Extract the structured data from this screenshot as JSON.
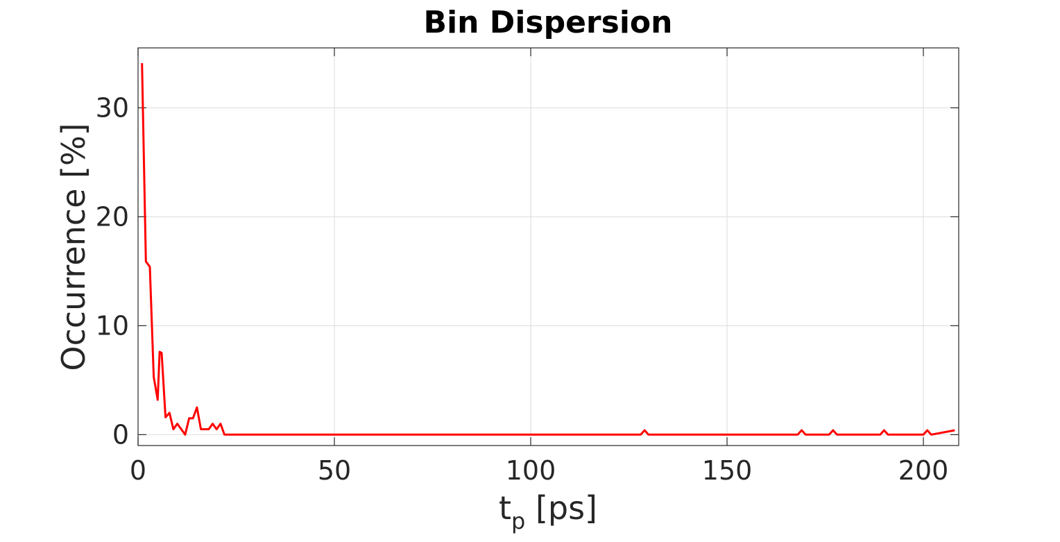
{
  "chart_data": {
    "type": "line",
    "title": "Bin Dispersion",
    "xlabel": {
      "main": "t",
      "sub": "p",
      "unit": " [ps]"
    },
    "ylabel": "Occurrence [%]",
    "xlim": [
      0,
      209
    ],
    "ylim": [
      -1,
      35.5
    ],
    "xticks": [
      0,
      50,
      100,
      150,
      200
    ],
    "xtick_labels": [
      "0",
      "50",
      "100",
      "150",
      "200"
    ],
    "yticks": [
      0,
      10,
      20,
      30
    ],
    "ytick_labels": [
      "0",
      "10",
      "20",
      "30"
    ],
    "grid": true,
    "series": [
      {
        "color": "#ff0000",
        "x": [
          1,
          2,
          3,
          4,
          5,
          5.5,
          6,
          7,
          8,
          9,
          10,
          11,
          12,
          13,
          14,
          15,
          16,
          17,
          18,
          19,
          20,
          21,
          22,
          128,
          129,
          130,
          168,
          169,
          170,
          176,
          177,
          178,
          189,
          190,
          191,
          200,
          201,
          202,
          208
        ],
        "y": [
          34.1,
          15.9,
          15.4,
          5.3,
          3.2,
          7.6,
          7.5,
          1.6,
          2.0,
          0.5,
          1.0,
          0.5,
          0.0,
          1.5,
          1.5,
          2.5,
          0.5,
          0.5,
          0.5,
          1.0,
          0.5,
          1.0,
          0.0,
          0.0,
          0.4,
          0.0,
          0.0,
          0.4,
          0.0,
          0.0,
          0.4,
          0.0,
          0.0,
          0.4,
          0.0,
          0.0,
          0.4,
          0.0,
          0.4
        ]
      }
    ]
  }
}
